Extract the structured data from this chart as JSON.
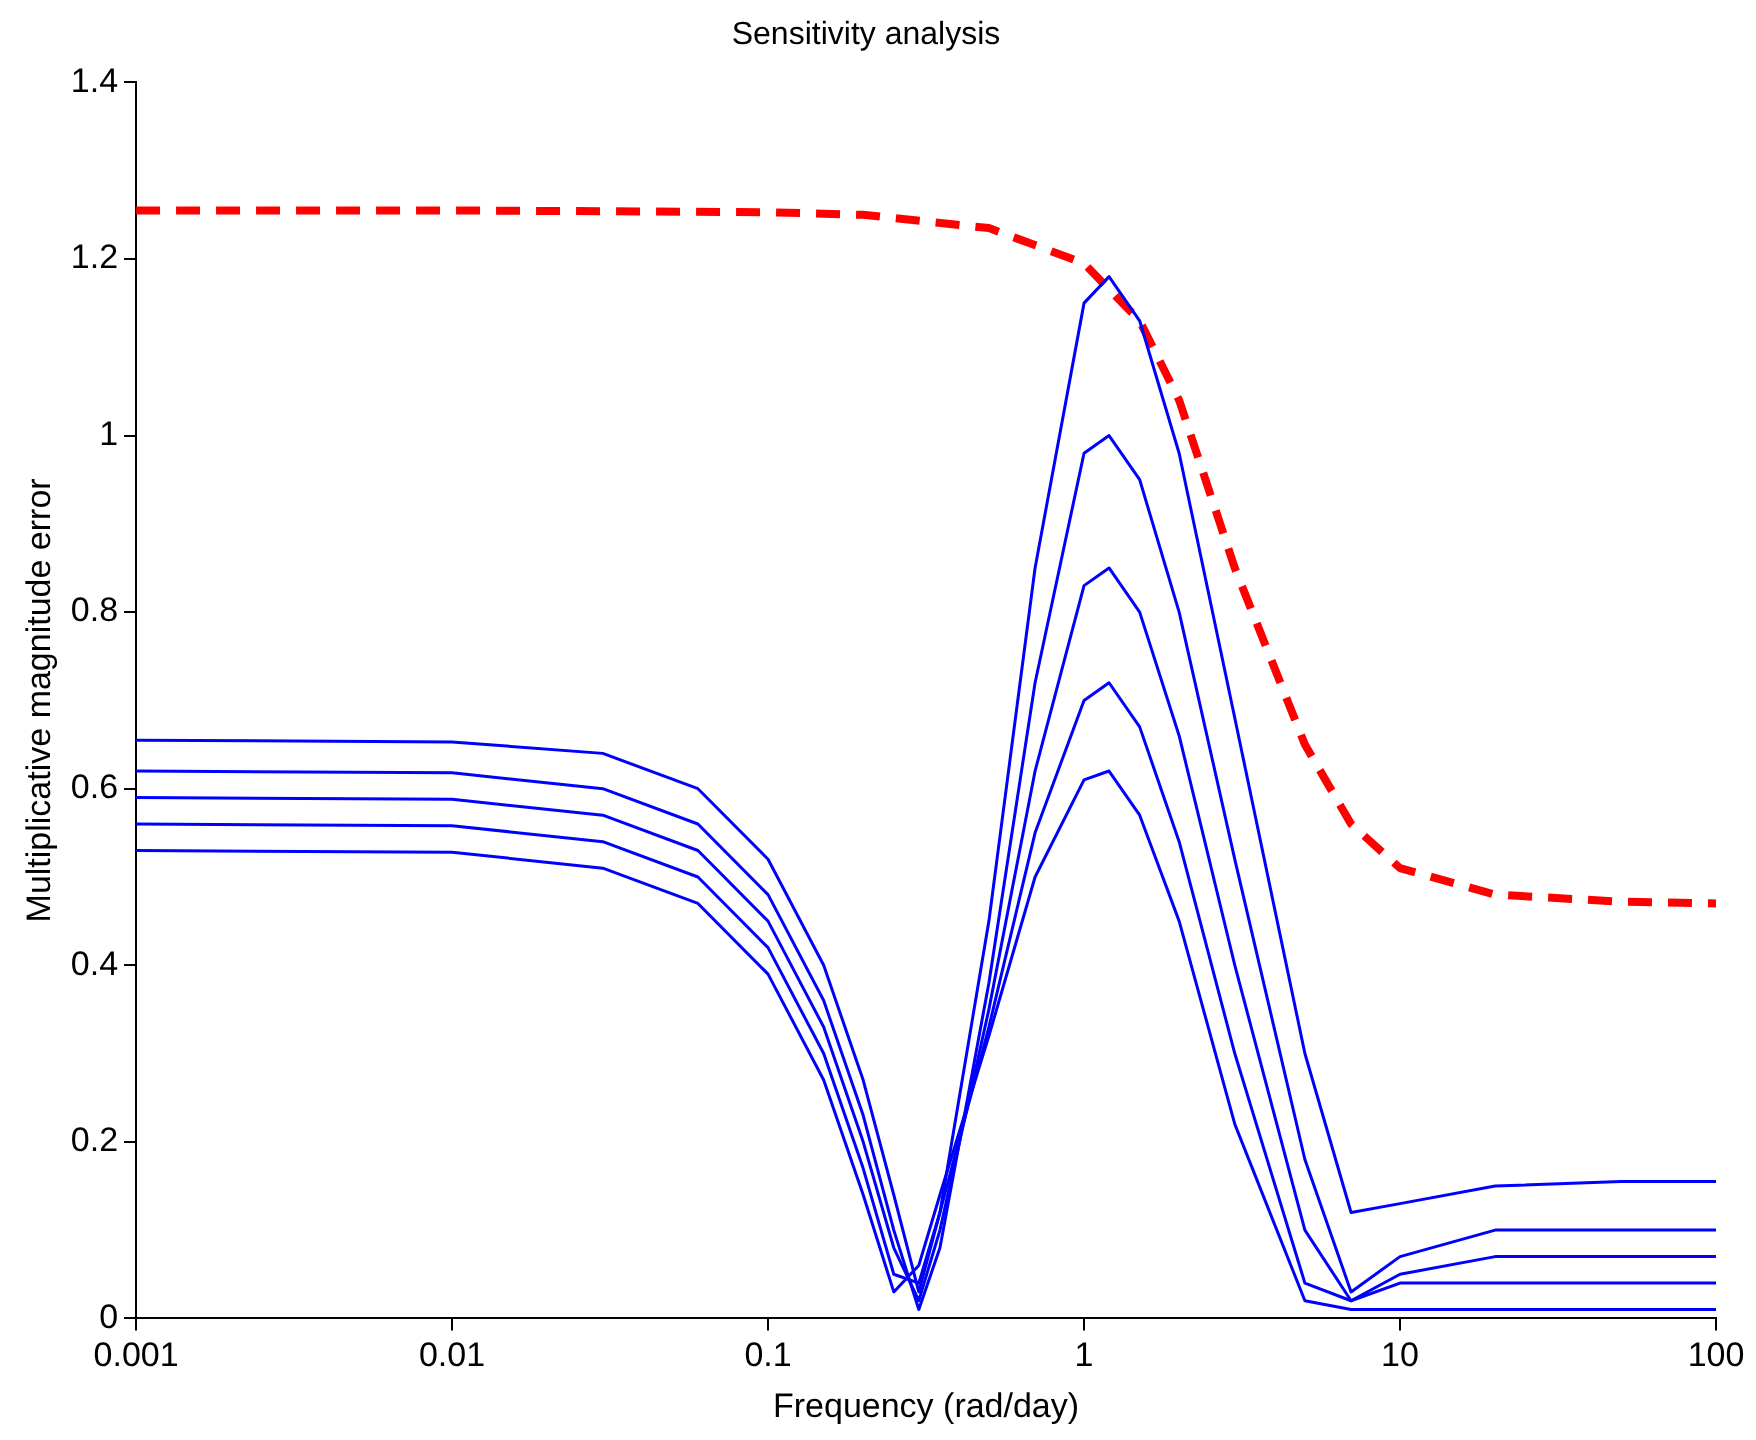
{
  "chart_data": {
    "type": "line",
    "title": "Sensitivity analysis",
    "xlabel": "Frequency (rad/day)",
    "ylabel": "Multiplicative magnitude error",
    "log": "x",
    "grid": false,
    "legend": false,
    "marker": "none",
    "x": [
      0.001,
      0.01,
      0.03,
      0.06,
      0.1,
      0.15,
      0.2,
      0.25,
      0.3,
      0.35,
      0.5,
      0.7,
      1,
      1.2,
      1.5,
      2,
      3,
      5,
      7,
      10,
      20,
      50,
      100
    ],
    "xlim": [
      0.001,
      100
    ],
    "xticks": [
      0.001,
      0.01,
      0.1,
      1,
      10,
      100
    ],
    "ylim": [
      0,
      1.4
    ],
    "yticks": [
      0,
      0.2,
      0.4,
      0.6,
      0.8,
      1,
      1.2,
      1.4
    ],
    "series": [
      {
        "color": "#0000ff",
        "line_style": "solid",
        "values": [
          0.655,
          0.653,
          0.64,
          0.6,
          0.52,
          0.4,
          0.27,
          0.14,
          0.03,
          0.12,
          0.45,
          0.85,
          1.15,
          1.18,
          1.13,
          0.98,
          0.68,
          0.3,
          0.12,
          0.13,
          0.15,
          0.155,
          0.155
        ]
      },
      {
        "color": "#0000ff",
        "line_style": "solid",
        "values": [
          0.62,
          0.618,
          0.6,
          0.56,
          0.48,
          0.36,
          0.23,
          0.1,
          0.01,
          0.08,
          0.38,
          0.72,
          0.98,
          1.0,
          0.95,
          0.8,
          0.52,
          0.18,
          0.03,
          0.07,
          0.1,
          0.1,
          0.1
        ]
      },
      {
        "color": "#0000ff",
        "line_style": "solid",
        "values": [
          0.59,
          0.588,
          0.57,
          0.53,
          0.45,
          0.33,
          0.2,
          0.08,
          0.02,
          0.1,
          0.35,
          0.62,
          0.83,
          0.85,
          0.8,
          0.66,
          0.4,
          0.1,
          0.02,
          0.05,
          0.07,
          0.07,
          0.07
        ]
      },
      {
        "color": "#0000ff",
        "line_style": "solid",
        "values": [
          0.56,
          0.558,
          0.54,
          0.5,
          0.42,
          0.3,
          0.17,
          0.05,
          0.04,
          0.12,
          0.33,
          0.55,
          0.7,
          0.72,
          0.67,
          0.54,
          0.3,
          0.04,
          0.02,
          0.04,
          0.04,
          0.04,
          0.04
        ]
      },
      {
        "color": "#0000ff",
        "line_style": "solid",
        "values": [
          0.53,
          0.528,
          0.51,
          0.47,
          0.39,
          0.27,
          0.14,
          0.03,
          0.06,
          0.14,
          0.32,
          0.5,
          0.61,
          0.62,
          0.57,
          0.45,
          0.22,
          0.02,
          0.01,
          0.01,
          0.01,
          0.01,
          0.01
        ]
      },
      {
        "color": "#ff0000",
        "line_style": "dashed",
        "x": [
          0.001,
          0.01,
          0.1,
          0.2,
          0.5,
          1,
          1.5,
          2,
          3,
          5,
          7,
          10,
          20,
          50,
          100
        ],
        "values": [
          1.255,
          1.255,
          1.253,
          1.25,
          1.235,
          1.195,
          1.13,
          1.04,
          0.85,
          0.65,
          0.56,
          0.51,
          0.48,
          0.472,
          0.47
        ]
      }
    ]
  }
}
